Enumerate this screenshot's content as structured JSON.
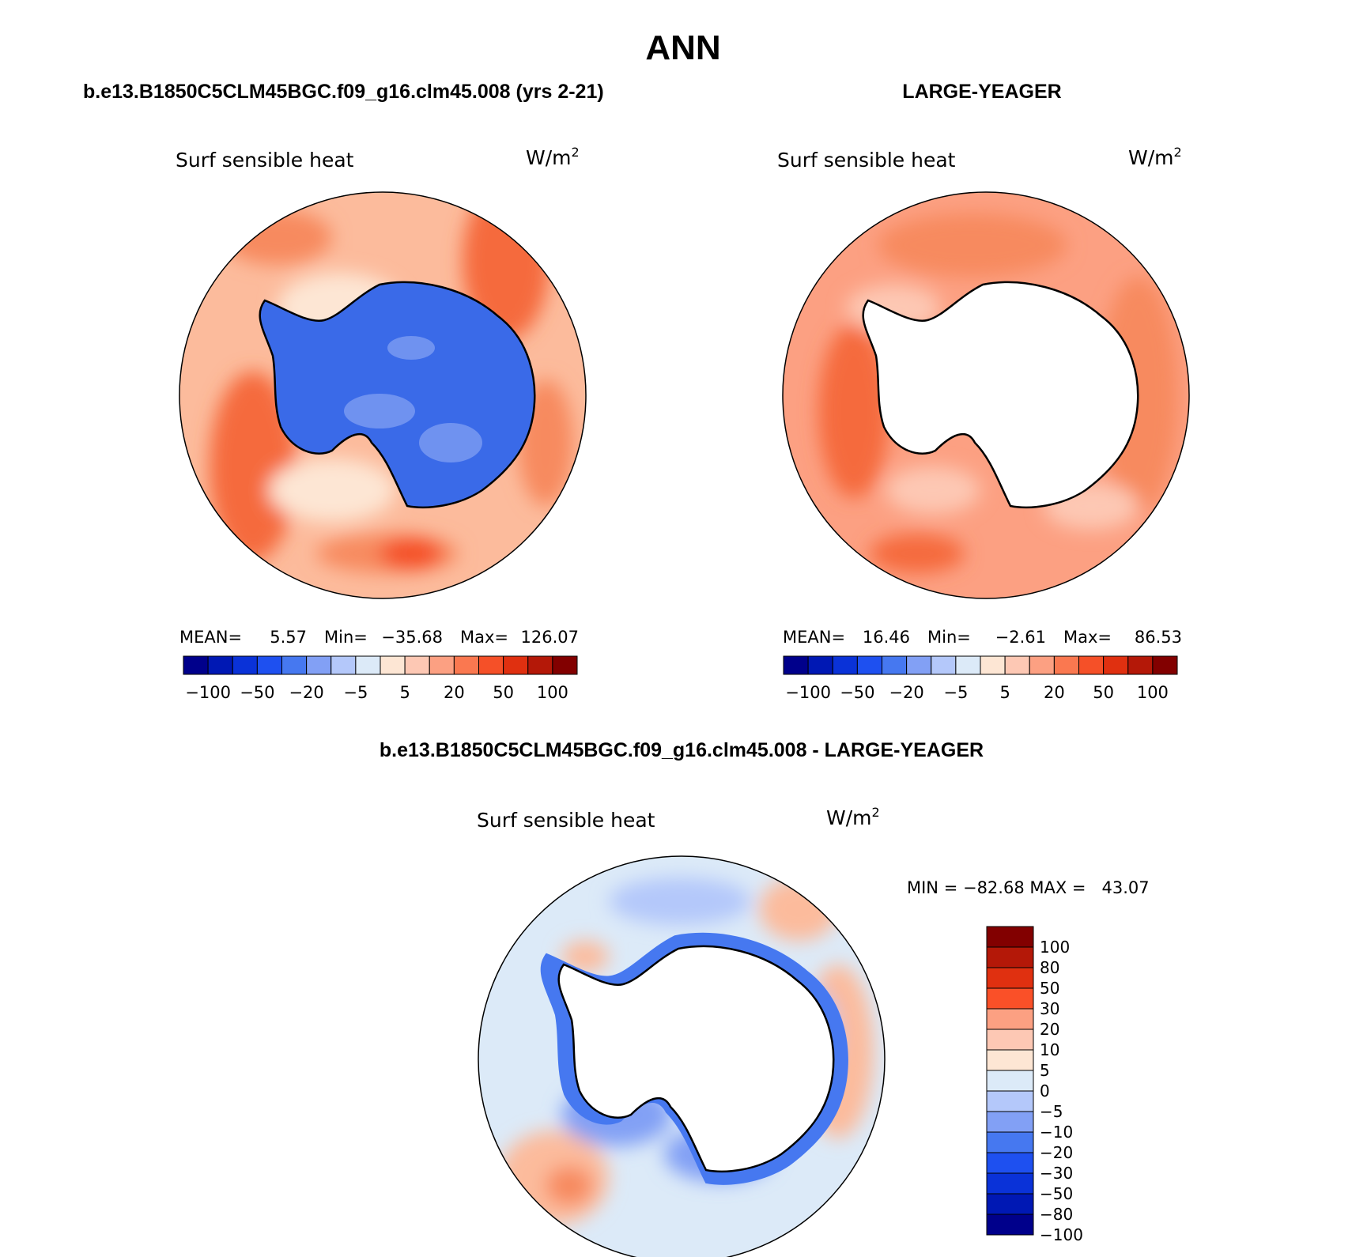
{
  "figure_title": "ANN",
  "panels": [
    {
      "title": "b.e13.B1850C5CLM45BGC.f09_g16.clm45.008 (yrs 2-21)",
      "variable": "Surf sensible heat",
      "units_base": "W/m",
      "units_exp": "2",
      "stats": {
        "mean_label": "MEAN=",
        "mean": "5.57",
        "min_label": "Min=",
        "min": "−35.68",
        "max_label": "Max=",
        "max": "126.07"
      },
      "land_fill": "#3a6ae8"
    },
    {
      "title": "LARGE-YEAGER",
      "variable": "Surf sensible heat",
      "units_base": "W/m",
      "units_exp": "2",
      "stats": {
        "mean_label": "MEAN=",
        "mean": "16.46",
        "min_label": "Min=",
        "min": "−2.61",
        "max_label": "Max=",
        "max": "86.53"
      },
      "land_fill": "#ffffff"
    }
  ],
  "diff_panel": {
    "title": "b.e13.B1850C5CLM45BGC.f09_g16.clm45.008 - LARGE-YEAGER",
    "variable": "Surf sensible heat",
    "units_base": "W/m",
    "units_exp": "2",
    "minmax": "MIN = −82.68 MAX =   43.07",
    "land_fill": "#ffffff"
  },
  "colorbar_horizontal": {
    "colors": [
      "#00008b",
      "#0018b4",
      "#0a32d8",
      "#1e50f0",
      "#4678f0",
      "#82a0f5",
      "#b4c8fa",
      "#dceaf8",
      "#fde6d4",
      "#fdc8b4",
      "#fca082",
      "#fa7850",
      "#f55028",
      "#e03010",
      "#b41808",
      "#820000"
    ],
    "tick_labels": [
      "−100",
      "−50",
      "−20",
      "−5",
      "5",
      "20",
      "50",
      "100"
    ]
  },
  "colorbar_vertical": {
    "colors_top_to_bottom": [
      "#820000",
      "#b41808",
      "#e03010",
      "#fa5028",
      "#fca082",
      "#fdc8b4",
      "#fde6d4",
      "#dceaf8",
      "#b4c8fa",
      "#82a0f5",
      "#4678f0",
      "#1e50f0",
      "#0a32d8",
      "#0018b4",
      "#00008b"
    ],
    "tick_labels": [
      "100",
      "80",
      "50",
      "30",
      "20",
      "10",
      "5",
      "0",
      "−5",
      "−10",
      "−20",
      "−30",
      "−50",
      "−80",
      "−100"
    ]
  }
}
